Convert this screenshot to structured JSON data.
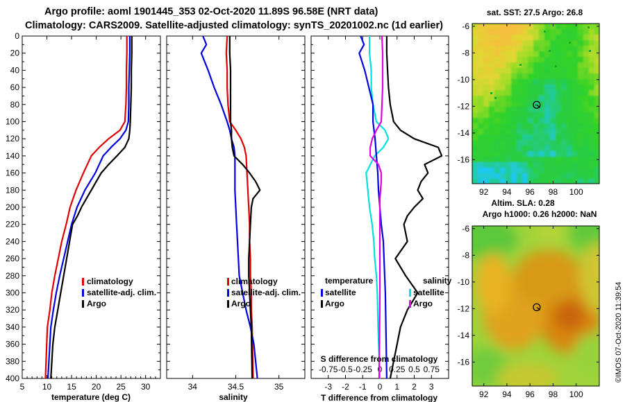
{
  "header": {
    "line1": "Argo profile: aoml 1901445_353 02-Oct-2020 11.89S 96.58E (NRT data)",
    "line2": "Climatology: CARS2009. Satellite-adjusted climatology: synTS_20201002.nc (1d earlier)"
  },
  "credit": "©IMOS 07-Oct-2020 11:39:54",
  "colors": {
    "clim": "#e00000",
    "sat": "#0000e0",
    "argo": "#000000",
    "tsat": "#00e0e0",
    "ssat": "#e000e0"
  },
  "chart_data": [
    {
      "type": "line",
      "name": "temperature-profile",
      "xlabel": "temperature (deg C)",
      "ylabel": "depth",
      "xlim": [
        5,
        33
      ],
      "ylim": [
        400,
        0
      ],
      "xticks": [
        "5",
        "10",
        "15",
        "20",
        "25",
        "30"
      ],
      "yticks": [
        "0",
        "20",
        "40",
        "60",
        "80",
        "100",
        "120",
        "140",
        "160",
        "180",
        "200",
        "220",
        "240",
        "260",
        "280",
        "300",
        "320",
        "340",
        "360",
        "380",
        "400"
      ],
      "legend": [
        "climatology",
        "satellite-adj. clim.",
        "Argo"
      ],
      "series": [
        {
          "name": "climatology",
          "color": "#e00000",
          "x": [
            26.2,
            26.2,
            26.1,
            26.1,
            26.0,
            25.8,
            24.8,
            22.5,
            20.6,
            19.0,
            17.4,
            15.9,
            14.7,
            13.9,
            13.0,
            12.3,
            11.6,
            11.0,
            10.6,
            10.1,
            9.7
          ],
          "y": [
            0,
            20,
            40,
            60,
            80,
            100,
            110,
            120,
            130,
            140,
            160,
            180,
            200,
            220,
            240,
            260,
            280,
            300,
            320,
            340,
            400
          ]
        },
        {
          "name": "satellite-adj. clim.",
          "color": "#0000e0",
          "x": [
            26.8,
            26.8,
            26.7,
            26.6,
            26.6,
            26.5,
            26.0,
            24.8,
            23.0,
            21.4,
            19.8,
            17.7,
            16.1,
            15.0,
            14.2,
            13.4,
            12.6,
            11.9,
            11.3,
            10.8,
            10.2
          ],
          "y": [
            0,
            20,
            40,
            60,
            80,
            100,
            110,
            120,
            130,
            140,
            160,
            180,
            200,
            220,
            240,
            260,
            280,
            300,
            320,
            340,
            400
          ]
        },
        {
          "name": "Argo",
          "color": "#000000",
          "x": [
            27.2,
            27.2,
            27.1,
            27.1,
            27.0,
            26.9,
            26.8,
            26.6,
            25.8,
            24.2,
            22.5,
            21.0,
            20.0,
            19.0,
            18.0,
            17.0,
            16.2,
            15.2,
            14.6,
            14.0,
            13.4,
            12.8,
            12.2,
            11.6,
            11.2,
            10.8
          ],
          "y": [
            0,
            20,
            40,
            60,
            80,
            100,
            110,
            120,
            130,
            140,
            150,
            160,
            170,
            180,
            190,
            200,
            210,
            220,
            240,
            260,
            280,
            300,
            320,
            340,
            360,
            400
          ]
        }
      ]
    },
    {
      "type": "line",
      "name": "salinity-profile",
      "xlabel": "salinity",
      "ylabel": "depth",
      "xlim": [
        33.7,
        35.3
      ],
      "ylim": [
        400,
        0
      ],
      "xticks": [
        "34",
        "34.5",
        "35"
      ],
      "legend": [
        "climatology",
        "satellite-adj. clim.",
        "Argo"
      ],
      "series": [
        {
          "name": "climatology",
          "color": "#e00000",
          "x": [
            34.4,
            34.39,
            34.4,
            34.4,
            34.41,
            34.43,
            34.5,
            34.56,
            34.6,
            34.62,
            34.63,
            34.64,
            34.65,
            34.66,
            34.66,
            34.67,
            34.67,
            34.68,
            34.68,
            34.69,
            34.7
          ],
          "y": [
            0,
            20,
            40,
            60,
            80,
            100,
            110,
            120,
            130,
            140,
            160,
            180,
            200,
            220,
            240,
            260,
            280,
            300,
            320,
            340,
            400
          ]
        },
        {
          "name": "satellite-adj. clim.",
          "color": "#0000e0",
          "x": [
            34.12,
            34.16,
            34.1,
            34.18,
            34.25,
            34.33,
            34.4,
            34.43,
            34.45,
            34.48,
            34.49,
            34.49,
            34.49,
            34.5,
            34.51,
            34.52,
            34.54,
            34.58,
            34.62,
            34.67,
            34.71,
            34.75
          ],
          "y": [
            0,
            10,
            20,
            40,
            60,
            80,
            100,
            110,
            120,
            130,
            140,
            160,
            180,
            200,
            220,
            240,
            280,
            300,
            320,
            340,
            360,
            400
          ]
        },
        {
          "name": "Argo",
          "color": "#000000",
          "x": [
            34.43,
            34.43,
            34.44,
            34.44,
            34.44,
            34.44,
            34.45,
            34.45,
            34.46,
            34.48,
            34.58,
            34.66,
            34.73,
            34.78,
            34.7,
            34.68,
            34.67,
            34.66,
            34.65,
            34.65,
            34.66,
            34.67,
            34.68,
            34.69
          ],
          "y": [
            0,
            20,
            40,
            60,
            80,
            100,
            110,
            120,
            130,
            140,
            150,
            160,
            170,
            180,
            190,
            200,
            220,
            240,
            260,
            280,
            300,
            320,
            340,
            400
          ]
        }
      ]
    },
    {
      "type": "line",
      "name": "difference-profile",
      "xlabel": "T difference from climatology",
      "xlabel2": "S difference from climatology",
      "xlim": [
        -4,
        4
      ],
      "ylim": [
        400,
        0
      ],
      "xticks": [
        "-3",
        "-2",
        "-1",
        "0",
        "1",
        "2",
        "3"
      ],
      "xticks2": [
        "-0.75",
        "-0.5",
        "-0.25",
        "0",
        "0.25",
        "0.5",
        "0.75"
      ],
      "legend_headers": [
        "temperature",
        "salinity"
      ],
      "legend_temperature": [
        "satellite",
        "Argo"
      ],
      "legend_salinity": [
        "satellite",
        "Argo"
      ],
      "series": [
        {
          "name": "T satellite",
          "color": "#00e0e0",
          "x": [
            -0.6,
            -0.6,
            -0.5,
            -0.5,
            -0.4,
            -0.2,
            0.3,
            0.5,
            0.2,
            -0.3,
            -0.8,
            -0.7,
            -0.6,
            -0.45,
            -0.35,
            -0.3,
            -0.2,
            -0.15,
            -0.1,
            0
          ],
          "y": [
            0,
            20,
            40,
            60,
            80,
            100,
            110,
            120,
            130,
            140,
            160,
            180,
            200,
            220,
            240,
            260,
            280,
            300,
            340,
            400
          ]
        },
        {
          "name": "T Argo",
          "color": "#000000",
          "x": [
            0.4,
            0.4,
            0.45,
            0.5,
            0.6,
            0.8,
            1.2,
            2.0,
            3.4,
            3.6,
            2.6,
            2.8,
            2.4,
            2.2,
            2.5,
            2.0,
            1.6,
            1.4,
            1.6,
            0.9,
            1.5,
            2.2,
            1.6,
            1.2,
            1.0,
            0.6
          ],
          "y": [
            0,
            20,
            40,
            60,
            80,
            100,
            110,
            120,
            130,
            140,
            150,
            160,
            170,
            180,
            190,
            200,
            210,
            220,
            240,
            260,
            280,
            300,
            320,
            340,
            360,
            400
          ]
        },
        {
          "name": "S satellite",
          "color": "#0000e0",
          "x": [
            -0.28,
            -0.23,
            -0.3,
            -0.22,
            -0.16,
            -0.1,
            -0.1,
            -0.07,
            -0.05,
            -0.03,
            -0.02,
            0,
            0.02,
            0.05,
            0.08,
            0.1
          ],
          "y": [
            0,
            10,
            20,
            40,
            60,
            80,
            100,
            120,
            140,
            160,
            180,
            200,
            220,
            240,
            300,
            400
          ]
        },
        {
          "name": "S Argo",
          "color": "#e000e0",
          "x": [
            0.03,
            0.04,
            0.04,
            0.04,
            0.03,
            0.02,
            -0.05,
            -0.11,
            -0.14,
            -0.14,
            -0.02,
            0.02,
            0.02,
            0.01,
            0,
            0,
            0,
            -0.01
          ],
          "y": [
            0,
            20,
            40,
            60,
            80,
            100,
            110,
            120,
            130,
            140,
            150,
            160,
            170,
            180,
            190,
            200,
            300,
            400
          ]
        }
      ]
    },
    {
      "type": "heatmap",
      "name": "sst-map",
      "title": "sat. SST: 27.5 Argo: 26.8",
      "xlim": [
        91,
        102
      ],
      "ylim": [
        -17.8,
        -5.8
      ],
      "xticks": [
        "92",
        "94",
        "96",
        "98",
        "100"
      ],
      "yticks": [
        "-6",
        "-8",
        "-10",
        "-12",
        "-14",
        "-16"
      ],
      "marker": {
        "lon": 96.58,
        "lat": -11.89
      }
    },
    {
      "type": "heatmap",
      "name": "sla-map",
      "title": "Altim. SLA: 0.28",
      "subtitle": "Argo h1000: 0.26 h2000: NaN",
      "xlim": [
        91,
        102
      ],
      "ylim": [
        -17.8,
        -5.8
      ],
      "xticks": [
        "92",
        "94",
        "96",
        "98",
        "100"
      ],
      "yticks": [
        "-6",
        "-8",
        "-10",
        "-12",
        "-14",
        "-16"
      ],
      "marker": {
        "lon": 96.58,
        "lat": -11.89
      }
    }
  ]
}
